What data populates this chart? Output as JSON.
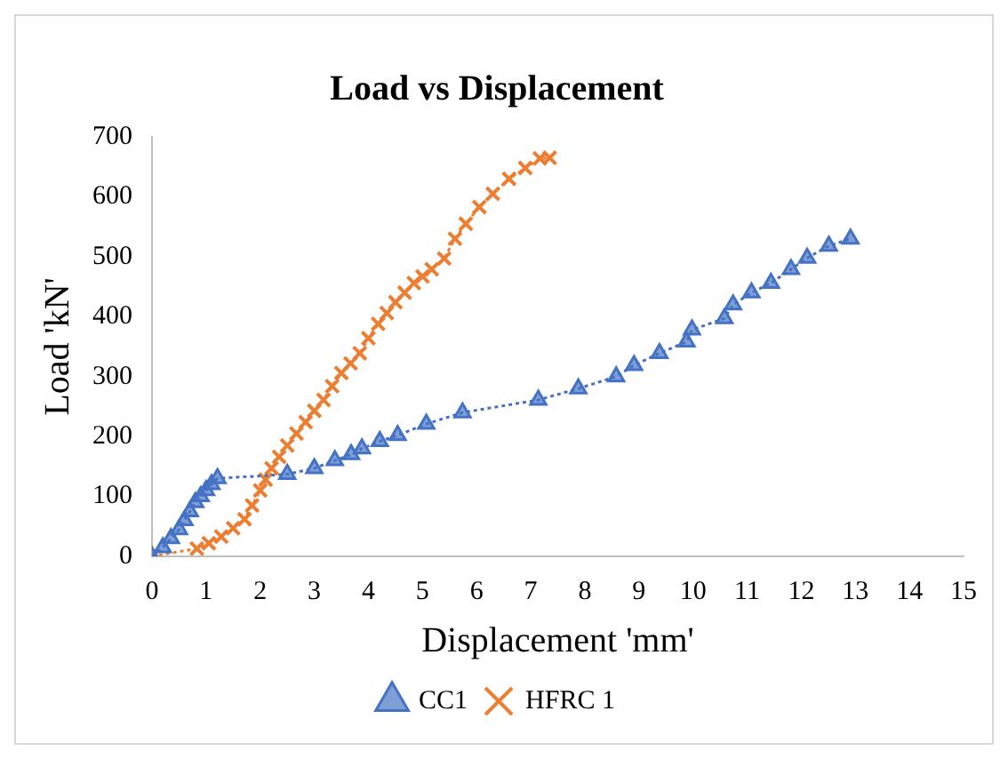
{
  "chart_data": {
    "type": "line",
    "title": "Load vs Displacement",
    "xlabel": "Displacement 'mm'",
    "ylabel": "Load 'kN'",
    "xlim": [
      0,
      15
    ],
    "xticks": [
      0,
      1,
      2,
      3,
      4,
      5,
      6,
      7,
      8,
      9,
      10,
      11,
      12,
      13,
      14,
      15
    ],
    "ylim": [
      0,
      700
    ],
    "yticks": [
      0,
      100,
      200,
      300,
      400,
      500,
      600,
      700
    ],
    "grid": false,
    "legend": "bottom",
    "line_style": "dotted",
    "series": [
      {
        "name": "CC1",
        "color": "#4472c4",
        "marker": "triangle",
        "x": [
          0,
          0.2,
          0.35,
          0.5,
          0.6,
          0.7,
          0.8,
          0.9,
          1.0,
          1.1,
          1.21,
          2.5,
          3.0,
          3.38,
          3.68,
          3.88,
          4.21,
          4.54,
          5.07,
          5.74,
          7.14,
          7.88,
          8.58,
          8.91,
          9.38,
          9.88,
          9.98,
          10.58,
          10.74,
          11.08,
          11.44,
          11.81,
          12.11,
          12.51,
          12.91
        ],
        "values": [
          0,
          15,
          30,
          45,
          60,
          75,
          90,
          100,
          110,
          120,
          130,
          137,
          147,
          160,
          170,
          180,
          192,
          202,
          221,
          240,
          261,
          280,
          300,
          319,
          339,
          358,
          378,
          397,
          420,
          440,
          456,
          479,
          498,
          518,
          530
        ]
      },
      {
        "name": "HFRC 1",
        "color": "#ed7d31",
        "marker": "cross",
        "x": [
          0,
          0.83,
          1.05,
          1.28,
          1.5,
          1.71,
          1.85,
          2.0,
          2.1,
          2.21,
          2.35,
          2.5,
          2.67,
          2.84,
          3.0,
          3.17,
          3.33,
          3.5,
          3.67,
          3.84,
          4.0,
          4.18,
          4.34,
          4.5,
          4.67,
          4.84,
          5.0,
          5.17,
          5.4,
          5.6,
          5.8,
          6.05,
          6.3,
          6.6,
          6.9,
          7.17,
          7.35
        ],
        "values": [
          0,
          13,
          22,
          33,
          47,
          62,
          85,
          110,
          128,
          147,
          166,
          185,
          205,
          224,
          243,
          261,
          284,
          306,
          322,
          339,
          364,
          388,
          406,
          424,
          440,
          456,
          467,
          479,
          497,
          530,
          555,
          583,
          605,
          630,
          648,
          664,
          665
        ]
      }
    ]
  }
}
